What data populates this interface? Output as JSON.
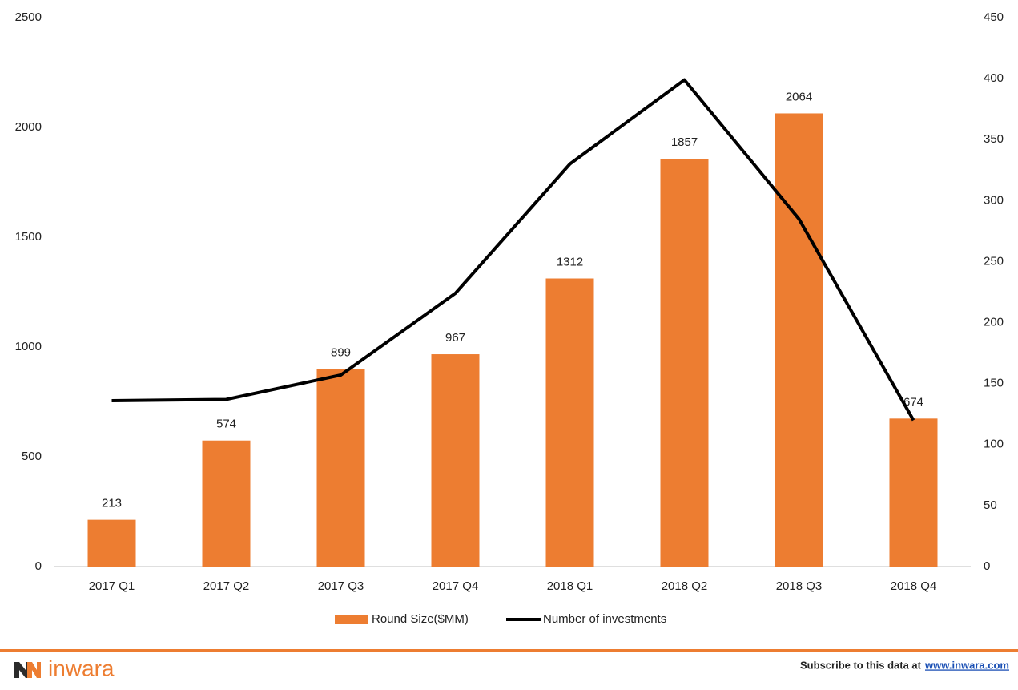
{
  "chart_data": {
    "type": "combo",
    "categories": [
      "2017 Q1",
      "2017 Q2",
      "2017 Q3",
      "2017 Q4",
      "2018 Q1",
      "2018 Q2",
      "2018 Q3",
      "2018 Q4"
    ],
    "series": [
      {
        "name": "Round Size($MM)",
        "type": "bar",
        "color": "#ED7D31",
        "values": [
          213,
          574,
          899,
          967,
          1312,
          1857,
          2064,
          674
        ]
      },
      {
        "name": "Number of investments",
        "type": "line",
        "axis": "y2",
        "color": "#000000",
        "values": [
          136,
          137,
          157,
          224,
          330,
          399,
          285,
          120
        ]
      }
    ],
    "ylim": [
      0,
      2500
    ],
    "yticks": [
      0,
      500,
      1000,
      1500,
      2000,
      2500
    ],
    "y2lim": [
      0,
      450
    ],
    "y2ticks": [
      0,
      50,
      100,
      150,
      200,
      250,
      300,
      350,
      400,
      450
    ],
    "data_labels": true,
    "grid": false,
    "legend": "bottom"
  },
  "footer": {
    "brand": "inwara",
    "subscribe": "Subscribe to this data at",
    "link": "www.inwara.com"
  }
}
